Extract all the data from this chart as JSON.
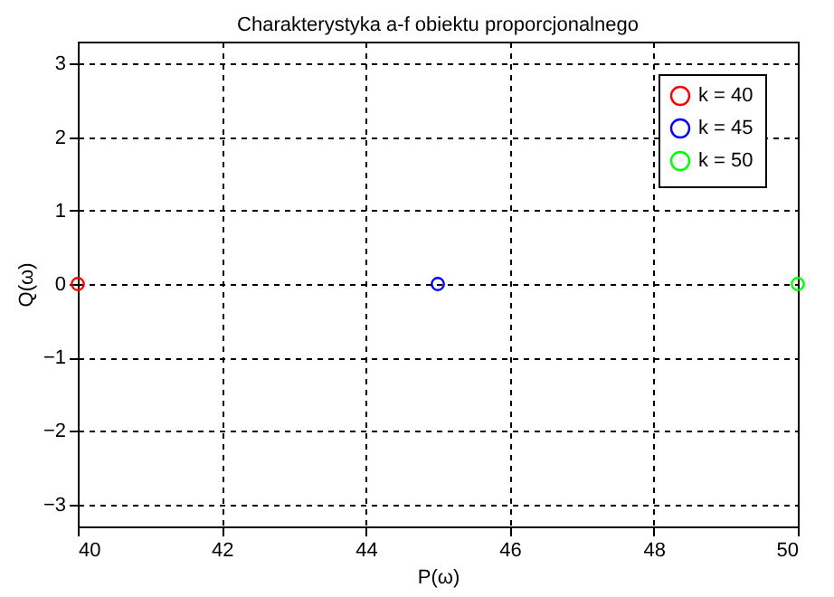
{
  "chart_data": {
    "type": "scatter",
    "title": "Charakterystyka a-f obiektu proporcjonalnego",
    "xlabel": "P(ω)",
    "ylabel": "Q(ω)",
    "series": [
      {
        "name": "k = 40",
        "color": "#ff0000",
        "x": [
          40
        ],
        "values": [
          0
        ]
      },
      {
        "name": "k = 45",
        "color": "#0000ff",
        "x": [
          45
        ],
        "values": [
          0
        ]
      },
      {
        "name": "k = 50",
        "color": "#00ff00",
        "x": [
          50
        ],
        "values": [
          0
        ]
      }
    ],
    "xlim": [
      40,
      50
    ],
    "xticks": [
      40,
      42,
      44,
      46,
      48,
      50
    ],
    "ylim": [
      -3.3,
      3.3
    ],
    "yticks": [
      -3,
      -2,
      -1,
      0,
      1,
      2,
      3
    ],
    "grid": true,
    "legend": "top right",
    "marker": "circle"
  }
}
